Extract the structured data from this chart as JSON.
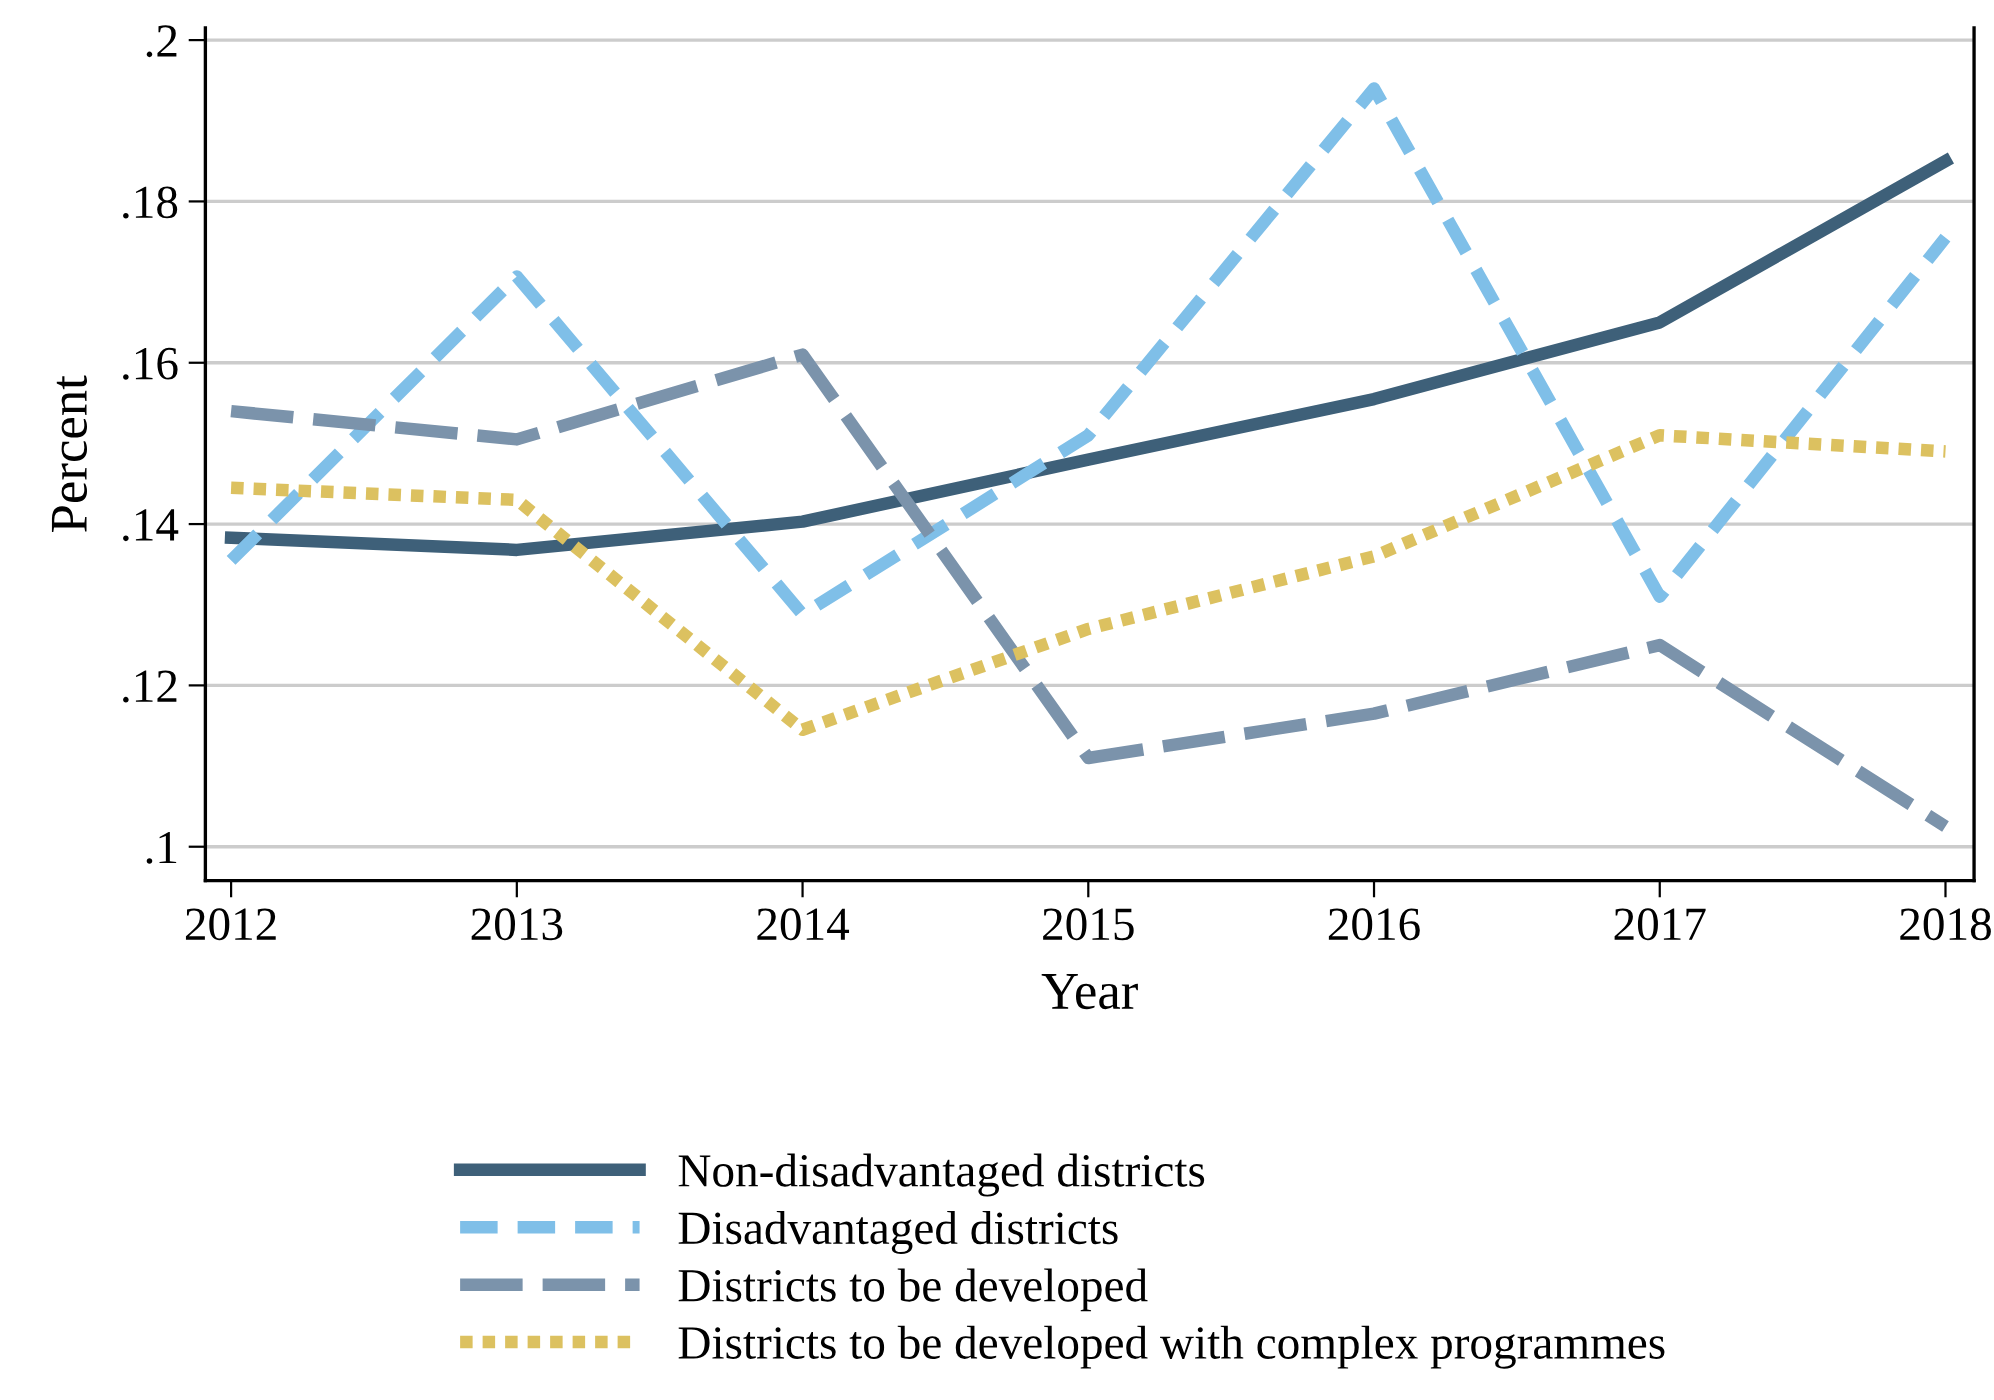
{
  "chart_data": {
    "type": "line",
    "xlabel": "Year",
    "ylabel": "Percent",
    "x": [
      2012,
      2013,
      2014,
      2015,
      2016,
      2017,
      2018
    ],
    "series": [
      {
        "name": "Non-disadvantaged districts",
        "color": "#3e6079",
        "line_style": "solid",
        "values": [
          0.1383,
          0.1368,
          0.1403,
          0.148,
          0.1555,
          0.165,
          0.185
        ]
      },
      {
        "name": "Disadvantaged districts",
        "color": "#7fbfe8",
        "line_style": "dashed",
        "values": [
          0.1355,
          0.1707,
          0.1288,
          0.151,
          0.194,
          0.131,
          0.1755
        ]
      },
      {
        "name": "Districts to be developed",
        "color": "#7b93ab",
        "line_style": "longdash",
        "values": [
          0.154,
          0.1505,
          0.161,
          0.111,
          0.1165,
          0.125,
          0.1025
        ]
      },
      {
        "name": "Districts to be developed with complex programmes",
        "color": "#dcc160",
        "line_style": "dotted",
        "values": [
          0.1445,
          0.143,
          0.1145,
          0.127,
          0.136,
          0.151,
          0.149
        ]
      }
    ],
    "xlim": [
      2011.91,
      2018.1
    ],
    "xticks": [
      2012,
      2013,
      2014,
      2015,
      2016,
      2017,
      2018
    ],
    "ylim": [
      0.0958,
      0.2015
    ],
    "yticks": [
      {
        "value": 0.1,
        "label": ".1"
      },
      {
        "value": 0.12,
        "label": ".12"
      },
      {
        "value": 0.14,
        "label": ".14"
      },
      {
        "value": 0.16,
        "label": ".16"
      },
      {
        "value": 0.18,
        "label": ".18"
      },
      {
        "value": 0.2,
        "label": ".2"
      }
    ],
    "grid": "y",
    "legend": "bottom",
    "marker": "none"
  }
}
